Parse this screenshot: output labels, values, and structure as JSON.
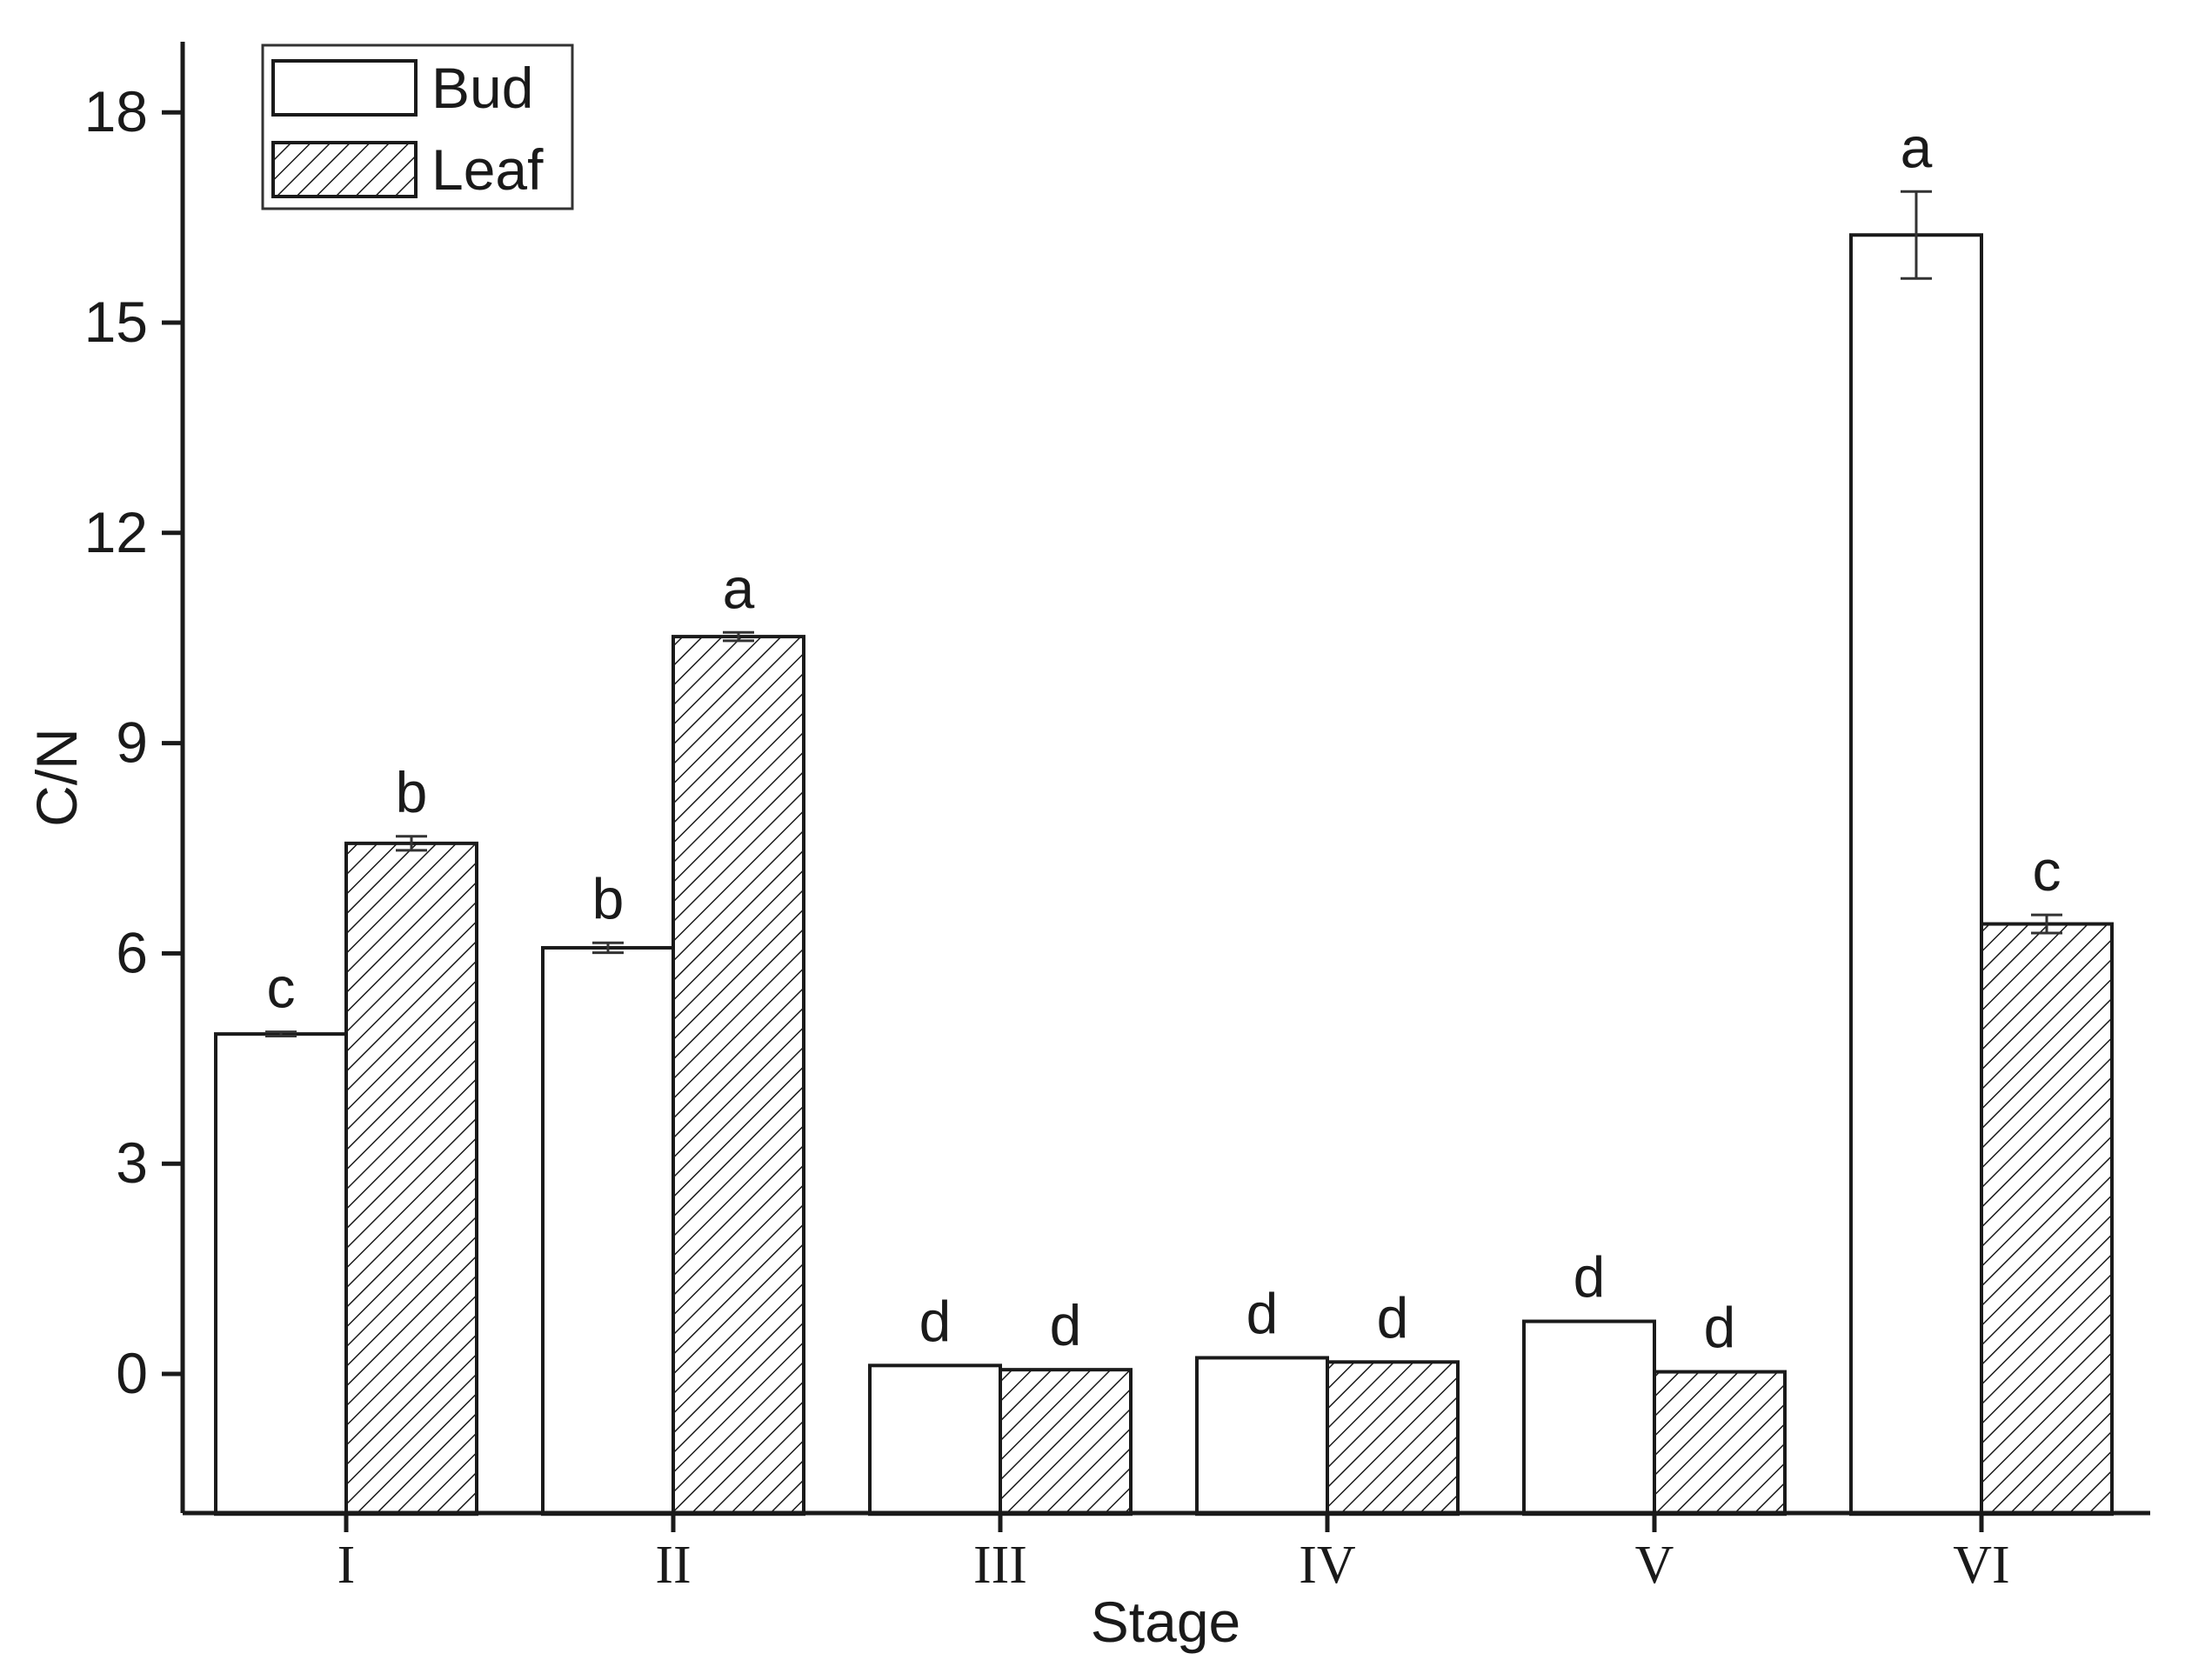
{
  "chart_data": {
    "type": "bar",
    "title": "",
    "xlabel": "Stage",
    "ylabel": "C/N",
    "ylim": [
      -2,
      19
    ],
    "yticks": [
      0,
      3,
      6,
      9,
      12,
      15,
      18
    ],
    "ytick_labels": [
      "0",
      "3",
      "6",
      "9",
      "12",
      "15",
      "18"
    ],
    "categories": [
      "I",
      "II",
      "III",
      "IV",
      "V",
      "VI"
    ],
    "legend_position": "top-left",
    "grid": false,
    "series": [
      {
        "name": "Bud",
        "pattern": "none",
        "values": [
          4.85,
          6.08,
          0.12,
          0.23,
          0.75,
          16.25
        ],
        "errors": [
          0.03,
          0.07,
          0.0,
          0.0,
          0.0,
          0.62
        ],
        "labels": [
          "c",
          "b",
          "d",
          "d",
          "d",
          "a"
        ]
      },
      {
        "name": "Leaf",
        "pattern": "diagonal-hatch",
        "values": [
          7.57,
          10.52,
          0.06,
          0.17,
          0.03,
          6.42
        ],
        "errors": [
          0.1,
          0.06,
          0.0,
          0.0,
          0.0,
          0.13
        ],
        "labels": [
          "b",
          "a",
          "d",
          "d",
          "d",
          "c"
        ]
      }
    ]
  },
  "colors": {
    "axis": "#1a1a1a",
    "bar_stroke": "#1a1a1a",
    "bar_fill": "#ffffff",
    "hatch": "#1a1a1a"
  }
}
